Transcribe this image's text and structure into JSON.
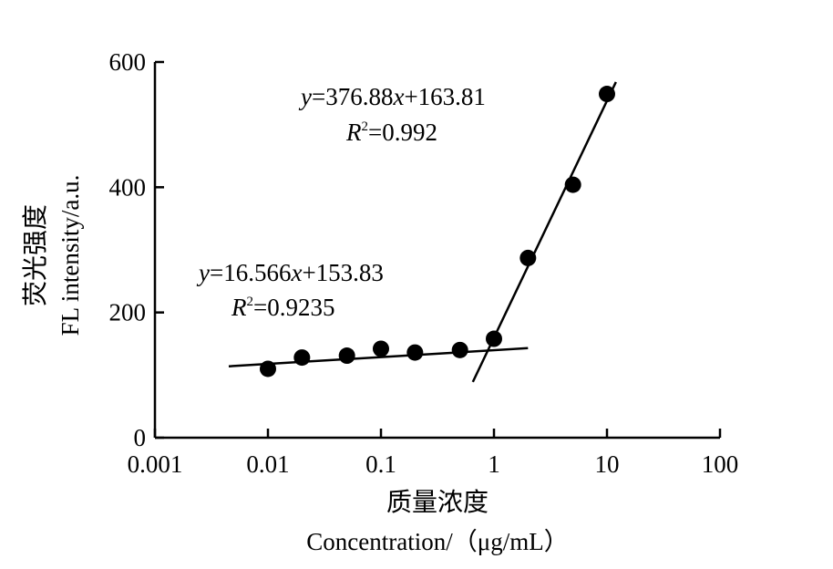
{
  "chart_data": {
    "type": "scatter",
    "x_scale": "log",
    "xlim": [
      0.001,
      100
    ],
    "ylim": [
      0,
      600
    ],
    "x_ticks": [
      0.001,
      0.01,
      0.1,
      1,
      10,
      100
    ],
    "x_tick_labels": [
      "0.001",
      "0.01",
      "0.1",
      "1",
      "10",
      "100"
    ],
    "y_ticks": [
      0,
      200,
      400,
      600
    ],
    "y_tick_labels": [
      "0",
      "200",
      "400",
      "600"
    ],
    "xlabel_cn": "质量浓度",
    "xlabel_en": "Concentration/（μg/mL）",
    "ylabel_cn": "荧光强度",
    "ylabel_en": "FL intensity/a.u.",
    "grid": false,
    "marker_color": "#000000",
    "series": [
      {
        "x": [
          0.01,
          0.02,
          0.05,
          0.1,
          0.2,
          0.5,
          1,
          2,
          5,
          10
        ],
        "y": [
          110,
          128,
          131,
          142,
          136,
          140,
          158,
          287,
          404,
          549
        ]
      }
    ],
    "fit_lines": [
      {
        "x_range": [
          0.0045,
          2
        ],
        "y_range": [
          114,
          143
        ]
      },
      {
        "x_range": [
          0.65,
          12
        ],
        "y_range": [
          89,
          568
        ]
      }
    ],
    "annotations": [
      {
        "equation": {
          "y": "y",
          "eq": "=16.566",
          "x": "x",
          "rest": "+153.83"
        },
        "r2": {
          "r": "R",
          "sup": "2",
          "val": "=0.9235"
        }
      },
      {
        "equation": {
          "y": "y",
          "eq": "=376.88",
          "x": "x",
          "rest": "+163.81"
        },
        "r2": {
          "r": "R",
          "sup": "2",
          "val": "=0.992"
        }
      }
    ]
  }
}
